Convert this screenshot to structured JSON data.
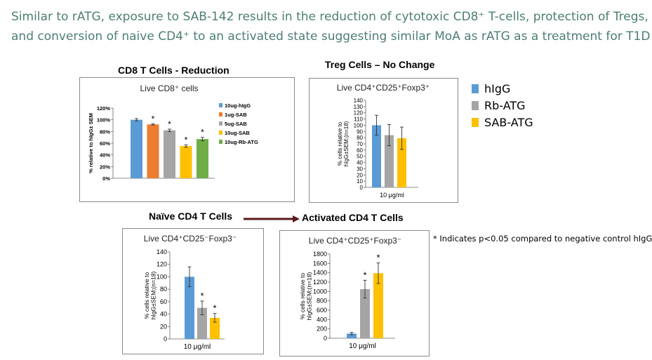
{
  "slide": {
    "title_line1": "Similar to rATG, exposure to SAB-142 results in the reduction of cytotoxic CD8⁺ T-cells, protection of Tregs,",
    "title_line2": "and conversion of naive CD4⁺ to an activated state suggesting similar MoA as rATG as a treatment for T1D"
  },
  "headings": {
    "cd8": "CD8 T Cells - Reduction",
    "treg": "Treg Cells – No Change",
    "naive": "Naïve CD4 T Cells",
    "activated": "Activated CD4 T Cells"
  },
  "legend": [
    {
      "label": "hIgG",
      "color": "#5b9bd5"
    },
    {
      "label": "Rb-ATG",
      "color": "#a5a5a5"
    },
    {
      "label": "SAB-ATG",
      "color": "#ffc000"
    }
  ],
  "footnote": "* Indicates p<0.05 compared to negative control hIgG",
  "chart_data": [
    {
      "type": "bar",
      "title": "Live CD8⁺ cells",
      "ylabel": "% relative to hIgG± SEM",
      "ylim": [
        0,
        120
      ],
      "yticks": [
        "0%",
        "20%",
        "40%",
        "60%",
        "80%",
        "100%",
        "120%"
      ],
      "categories": [
        "10ug-hIgG",
        "1ug-SAB",
        "5ug-SAB",
        "10ug-SAB",
        "10ug-Rb-ATG"
      ],
      "values": [
        100,
        92,
        82,
        55,
        67
      ],
      "errors": [
        2,
        1,
        2,
        2,
        3
      ],
      "colors": [
        "#5b9bd5",
        "#ed7d31",
        "#a5a5a5",
        "#ffc000",
        "#70ad47"
      ],
      "significant": [
        false,
        true,
        true,
        true,
        true
      ],
      "legend_position": "right"
    },
    {
      "type": "bar",
      "title": "Live CD4⁺CD25⁺Foxp3⁺",
      "ylabel_line1": "% cells relative to",
      "ylabel_line2": "hIgG±SEM;(n=18)",
      "xlabel": "10 μg/ml",
      "ylim": [
        0,
        140
      ],
      "yticks": [
        "0",
        "10",
        "20",
        "30",
        "40",
        "50",
        "60",
        "70",
        "80",
        "90",
        "100",
        "110",
        "120",
        "130",
        "140"
      ],
      "categories": [
        "hIgG",
        "Rb-ATG",
        "SAB-ATG"
      ],
      "values": [
        100,
        84,
        79
      ],
      "errors": [
        16,
        17,
        18
      ],
      "colors": [
        "#5b9bd5",
        "#a5a5a5",
        "#ffc000"
      ],
      "significant": [
        false,
        false,
        false
      ]
    },
    {
      "type": "bar",
      "title": "Live CD4⁺CD25⁻Foxp3⁻",
      "ylabel_line1": "% cells relative to",
      "ylabel_line2": "hIgG±SEM;(n=18)",
      "xlabel": "10 μg/ml",
      "ylim": [
        0,
        140
      ],
      "yticks": [
        "0",
        "20",
        "40",
        "60",
        "80",
        "100",
        "120",
        "140"
      ],
      "categories": [
        "hIgG",
        "Rb-ATG",
        "SAB-ATG"
      ],
      "values": [
        100,
        50,
        34
      ],
      "errors": [
        16,
        11,
        7
      ],
      "colors": [
        "#5b9bd5",
        "#a5a5a5",
        "#ffc000"
      ],
      "significant": [
        false,
        true,
        true
      ]
    },
    {
      "type": "bar",
      "title": "Live CD4⁺CD25⁺Foxp3⁻",
      "ylabel_line1": "% cells relative to",
      "ylabel_line2": "hIgG±SEM;(n=18)",
      "xlabel": "10 μg/ml",
      "ylim": [
        0,
        1800
      ],
      "yticks": [
        "0",
        "200",
        "400",
        "600",
        "800",
        "1000",
        "1200",
        "1400",
        "1600",
        "1800"
      ],
      "categories": [
        "hIgG",
        "Rb-ATG",
        "SAB-ATG"
      ],
      "values": [
        100,
        1050,
        1390
      ],
      "errors": [
        25,
        190,
        220
      ],
      "colors": [
        "#5b9bd5",
        "#a5a5a5",
        "#ffc000"
      ],
      "significant": [
        false,
        true,
        true
      ]
    }
  ]
}
